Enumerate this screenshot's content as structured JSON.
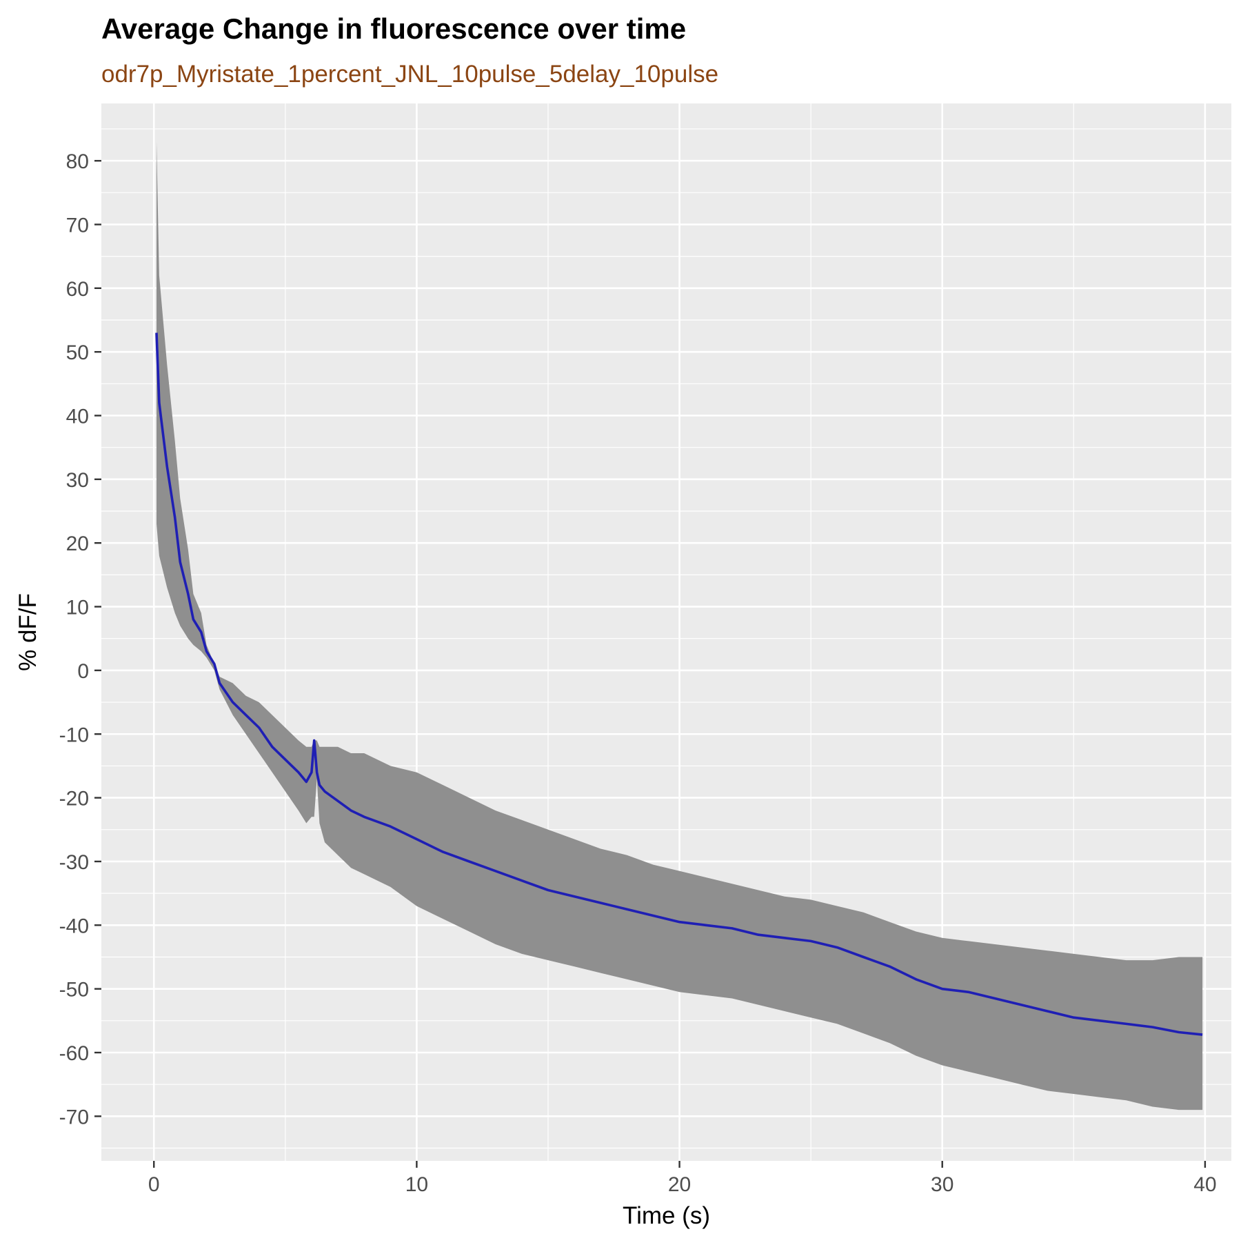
{
  "chart_data": {
    "type": "line",
    "title": "Average Change in fluorescence over time",
    "subtitle": "odr7p_Myristate_1percent_JNL_10pulse_5delay_10pulse",
    "xlabel": "Time (s)",
    "ylabel": "% dF/F",
    "xlim": [
      -2,
      41
    ],
    "ylim": [
      -77,
      89
    ],
    "x_ticks": [
      0,
      10,
      20,
      30,
      40
    ],
    "y_ticks": [
      80,
      70,
      60,
      50,
      40,
      30,
      20,
      10,
      0,
      -10,
      -20,
      -30,
      -40,
      -50,
      -60,
      -70
    ],
    "grid": true,
    "legend": "none",
    "colors": {
      "panel": "#EBEBEB",
      "grid": "#FFFFFF",
      "ribbon": "#8F8F8F",
      "line": "#1F1FB4",
      "spike": "#0000FF",
      "subtitle": "#8B4513"
    },
    "series": [
      {
        "x": [
          0.1,
          0.2,
          0.5,
          0.8,
          1.0,
          1.3,
          1.5,
          1.8,
          2.0,
          2.3,
          2.5,
          3.0,
          3.5,
          4.0,
          4.5,
          5.0,
          5.5,
          5.8,
          6.0,
          6.1,
          6.2,
          6.3,
          6.5,
          7.0,
          7.5,
          8.0,
          9.0,
          10.0,
          11.0,
          12.0,
          13.0,
          14.0,
          15.0,
          16.0,
          17.0,
          18.0,
          19.0,
          20.0,
          21.0,
          22.0,
          23.0,
          24.0,
          25.0,
          26.0,
          27.0,
          28.0,
          29.0,
          30.0,
          31.0,
          32.0,
          33.0,
          34.0,
          35.0,
          36.0,
          37.0,
          38.0,
          39.0,
          39.9
        ],
        "y": [
          53,
          42,
          32,
          24,
          17,
          12,
          8,
          6,
          3,
          1,
          -2,
          -5,
          -7,
          -9,
          -12,
          -14,
          -16,
          -17.5,
          -16,
          -11,
          -16,
          -18,
          -19,
          -20.5,
          -22,
          -23,
          -24.5,
          -26.5,
          -28.5,
          -30,
          -31.5,
          -33,
          -34.5,
          -35.5,
          -36.5,
          -37.5,
          -38.5,
          -39.5,
          -40,
          -40.5,
          -41.5,
          -42,
          -42.5,
          -43.5,
          -45,
          -46.5,
          -48.5,
          -50,
          -50.5,
          -51.5,
          -52.5,
          -53.5,
          -54.5,
          -55,
          -55.5,
          -56,
          -56.8,
          -57.2
        ],
        "lower": [
          23,
          18,
          13,
          9,
          7,
          5,
          4,
          3,
          2,
          0,
          -3,
          -7,
          -10,
          -13,
          -16,
          -19,
          -22,
          -24,
          -23,
          -23,
          -17,
          -24,
          -27,
          -29,
          -31,
          -32,
          -34,
          -37,
          -39,
          -41,
          -43,
          -44.5,
          -45.5,
          -46.5,
          -47.5,
          -48.5,
          -49.5,
          -50.5,
          -51,
          -51.5,
          -52.5,
          -53.5,
          -54.5,
          -55.5,
          -57,
          -58.5,
          -60.5,
          -62,
          -63,
          -64,
          -65,
          -66,
          -66.5,
          -67,
          -67.5,
          -68.5,
          -69,
          -69
        ],
        "upper": [
          83,
          62,
          48,
          36,
          27,
          19,
          12,
          9,
          4,
          1,
          -1,
          -2,
          -4,
          -5,
          -7,
          -9,
          -11,
          -12,
          -12,
          -11,
          -11,
          -12,
          -12,
          -12,
          -13,
          -13,
          -15,
          -16,
          -18,
          -20,
          -22,
          -23.5,
          -25,
          -26.5,
          -28,
          -29,
          -30.5,
          -31.5,
          -32.5,
          -33.5,
          -34.5,
          -35.5,
          -36,
          -37,
          -38,
          -39.5,
          -41,
          -42,
          -42.5,
          -43,
          -43.5,
          -44,
          -44.5,
          -45,
          -45.5,
          -45.5,
          -45,
          -45
        ]
      }
    ]
  }
}
